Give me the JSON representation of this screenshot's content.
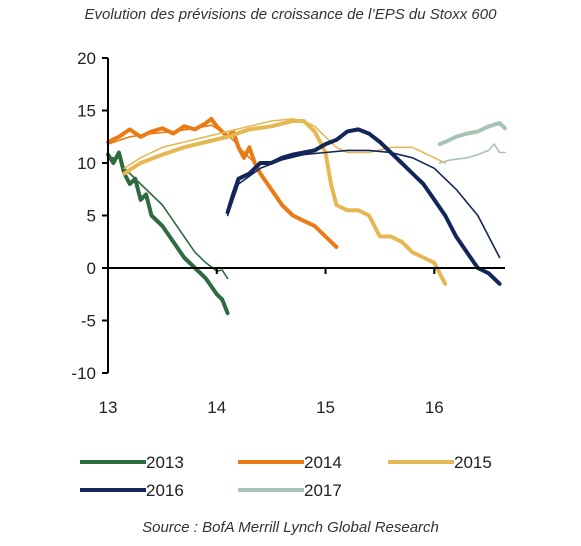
{
  "chart_data": {
    "type": "line",
    "title": "Evolution des prévisions de croissance de l’EPS du Stoxx 600",
    "source": "Source : BofA Merrill Lynch Global Research",
    "xlabel": "",
    "ylabel": "",
    "xlim": [
      13,
      16.65
    ],
    "ylim": [
      -10,
      20
    ],
    "x_ticks": [
      "13",
      "14",
      "15",
      "16"
    ],
    "y_ticks": [
      "20",
      "15",
      "10",
      "5",
      "0",
      "-5",
      "-10"
    ],
    "grid": false,
    "legend_position": "bottom",
    "legend": [
      "2013",
      "2014",
      "2015",
      "2016",
      "2017"
    ],
    "series": [
      {
        "name": "2013",
        "color": "#2e6b3e",
        "style": "thick",
        "points": [
          [
            13.0,
            10.8
          ],
          [
            13.05,
            10.0
          ],
          [
            13.1,
            11.0
          ],
          [
            13.15,
            9.0
          ],
          [
            13.2,
            8.0
          ],
          [
            13.25,
            8.5
          ],
          [
            13.3,
            6.5
          ],
          [
            13.35,
            7.0
          ],
          [
            13.4,
            5.0
          ],
          [
            13.5,
            4.0
          ],
          [
            13.6,
            2.5
          ],
          [
            13.7,
            1.0
          ],
          [
            13.8,
            0.0
          ],
          [
            13.9,
            -1.0
          ],
          [
            14.0,
            -2.5
          ],
          [
            14.05,
            -3.0
          ],
          [
            14.1,
            -4.3
          ]
        ]
      },
      {
        "name": "2013",
        "color": "#2e6b3e",
        "style": "thin",
        "points": [
          [
            13.0,
            10.5
          ],
          [
            13.1,
            10.5
          ],
          [
            13.15,
            9.5
          ],
          [
            13.2,
            9.0
          ],
          [
            13.3,
            8.0
          ],
          [
            13.4,
            7.0
          ],
          [
            13.5,
            6.0
          ],
          [
            13.6,
            4.5
          ],
          [
            13.7,
            3.0
          ],
          [
            13.8,
            1.5
          ],
          [
            13.9,
            0.5
          ],
          [
            14.0,
            -0.3
          ],
          [
            14.05,
            -0.2
          ],
          [
            14.1,
            -1.0
          ]
        ]
      },
      {
        "name": "2014",
        "color": "#ec7a14",
        "style": "thick",
        "points": [
          [
            13.0,
            12.0
          ],
          [
            13.1,
            12.5
          ],
          [
            13.2,
            13.2
          ],
          [
            13.3,
            12.5
          ],
          [
            13.4,
            13.0
          ],
          [
            13.5,
            13.3
          ],
          [
            13.6,
            12.8
          ],
          [
            13.7,
            13.5
          ],
          [
            13.8,
            13.2
          ],
          [
            13.9,
            13.8
          ],
          [
            13.95,
            14.2
          ],
          [
            14.0,
            13.5
          ],
          [
            14.1,
            12.5
          ],
          [
            14.15,
            13.0
          ],
          [
            14.2,
            11.5
          ],
          [
            14.25,
            10.5
          ],
          [
            14.3,
            11.5
          ],
          [
            14.35,
            10.0
          ],
          [
            14.4,
            9.0
          ],
          [
            14.5,
            7.5
          ],
          [
            14.6,
            6.0
          ],
          [
            14.7,
            5.0
          ],
          [
            14.8,
            4.5
          ],
          [
            14.9,
            4.0
          ],
          [
            15.0,
            3.0
          ],
          [
            15.1,
            2.0
          ]
        ]
      },
      {
        "name": "2014",
        "color": "#ec7a14",
        "style": "thin",
        "points": [
          [
            13.0,
            11.8
          ],
          [
            13.2,
            12.5
          ],
          [
            13.4,
            12.8
          ],
          [
            13.6,
            13.0
          ],
          [
            13.8,
            13.3
          ],
          [
            13.95,
            13.6
          ],
          [
            14.05,
            13.0
          ],
          [
            14.15,
            12.2
          ],
          [
            14.25,
            11.0
          ],
          [
            14.3,
            10.5
          ],
          [
            14.35,
            10.0
          ]
        ]
      },
      {
        "name": "2015",
        "color": "#e6b854",
        "style": "thick",
        "points": [
          [
            13.15,
            9.0
          ],
          [
            13.3,
            10.0
          ],
          [
            13.5,
            10.8
          ],
          [
            13.7,
            11.5
          ],
          [
            13.9,
            12.0
          ],
          [
            14.1,
            12.5
          ],
          [
            14.3,
            13.2
          ],
          [
            14.5,
            13.5
          ],
          [
            14.7,
            14.0
          ],
          [
            14.8,
            14.0
          ],
          [
            14.9,
            13.0
          ],
          [
            15.0,
            11.0
          ],
          [
            15.05,
            8.0
          ],
          [
            15.1,
            6.0
          ],
          [
            15.2,
            5.5
          ],
          [
            15.3,
            5.5
          ],
          [
            15.4,
            5.0
          ],
          [
            15.5,
            3.0
          ],
          [
            15.6,
            3.0
          ],
          [
            15.7,
            2.5
          ],
          [
            15.8,
            1.5
          ],
          [
            15.9,
            1.0
          ],
          [
            16.0,
            0.5
          ],
          [
            16.05,
            -0.5
          ],
          [
            16.1,
            -1.5
          ]
        ]
      },
      {
        "name": "2015",
        "color": "#e6b854",
        "style": "thin",
        "points": [
          [
            13.15,
            9.5
          ],
          [
            13.3,
            10.5
          ],
          [
            13.5,
            11.5
          ],
          [
            13.7,
            12.0
          ],
          [
            13.9,
            12.5
          ],
          [
            14.1,
            13.0
          ],
          [
            14.3,
            13.5
          ],
          [
            14.5,
            14.0
          ],
          [
            14.7,
            14.2
          ],
          [
            14.8,
            14.0
          ],
          [
            14.9,
            13.5
          ],
          [
            15.0,
            12.5
          ],
          [
            15.1,
            11.5
          ],
          [
            15.2,
            11.0
          ],
          [
            15.4,
            11.0
          ],
          [
            15.6,
            11.5
          ],
          [
            15.8,
            11.5
          ],
          [
            16.0,
            10.5
          ],
          [
            16.1,
            10.0
          ]
        ]
      },
      {
        "name": "2016",
        "color": "#13265a",
        "style": "thick",
        "points": [
          [
            14.1,
            5.3
          ],
          [
            14.15,
            7.0
          ],
          [
            14.2,
            8.5
          ],
          [
            14.3,
            9.0
          ],
          [
            14.4,
            10.0
          ],
          [
            14.5,
            10.0
          ],
          [
            14.6,
            10.5
          ],
          [
            14.7,
            10.8
          ],
          [
            14.8,
            11.0
          ],
          [
            14.9,
            11.2
          ],
          [
            15.0,
            11.8
          ],
          [
            15.1,
            12.2
          ],
          [
            15.2,
            13.0
          ],
          [
            15.3,
            13.2
          ],
          [
            15.4,
            12.8
          ],
          [
            15.5,
            12.0
          ],
          [
            15.6,
            11.0
          ],
          [
            15.7,
            10.0
          ],
          [
            15.8,
            9.0
          ],
          [
            15.9,
            8.0
          ],
          [
            16.0,
            6.5
          ],
          [
            16.1,
            5.0
          ],
          [
            16.2,
            3.0
          ],
          [
            16.3,
            1.5
          ],
          [
            16.4,
            0.0
          ],
          [
            16.5,
            -0.5
          ],
          [
            16.6,
            -1.5
          ]
        ]
      },
      {
        "name": "2016",
        "color": "#13265a",
        "style": "thin",
        "points": [
          [
            14.1,
            5.0
          ],
          [
            14.2,
            8.0
          ],
          [
            14.4,
            9.5
          ],
          [
            14.6,
            10.3
          ],
          [
            14.8,
            10.8
          ],
          [
            15.0,
            11.0
          ],
          [
            15.2,
            11.2
          ],
          [
            15.4,
            11.2
          ],
          [
            15.6,
            11.0
          ],
          [
            15.8,
            10.5
          ],
          [
            16.0,
            9.5
          ],
          [
            16.2,
            7.5
          ],
          [
            16.4,
            5.0
          ],
          [
            16.5,
            3.0
          ],
          [
            16.6,
            1.0
          ]
        ]
      },
      {
        "name": "2017",
        "color": "#a9c4b4",
        "style": "thick",
        "points": [
          [
            16.05,
            11.8
          ],
          [
            16.1,
            12.0
          ],
          [
            16.2,
            12.5
          ],
          [
            16.3,
            12.8
          ],
          [
            16.4,
            13.0
          ],
          [
            16.5,
            13.5
          ],
          [
            16.6,
            13.8
          ],
          [
            16.65,
            13.3
          ]
        ]
      },
      {
        "name": "2017",
        "color": "#a9c4b4",
        "style": "thin",
        "points": [
          [
            16.05,
            10.0
          ],
          [
            16.15,
            10.3
          ],
          [
            16.3,
            10.5
          ],
          [
            16.4,
            10.8
          ],
          [
            16.5,
            11.2
          ],
          [
            16.55,
            11.8
          ],
          [
            16.6,
            11.0
          ],
          [
            16.65,
            11.0
          ]
        ]
      }
    ]
  }
}
